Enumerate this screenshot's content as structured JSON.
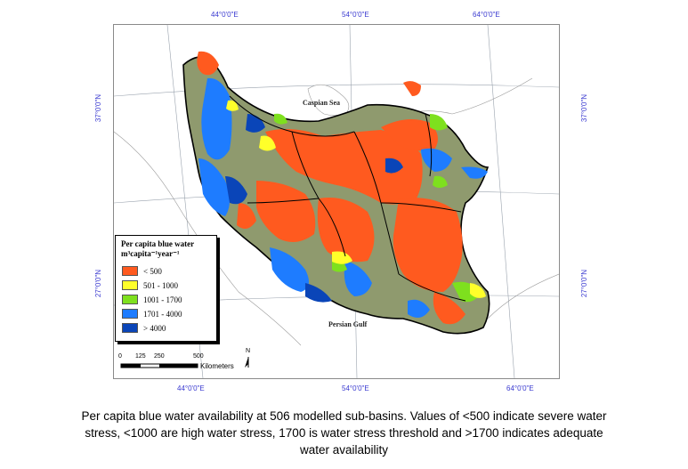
{
  "map": {
    "top_labels": [
      "44°0'0\"E",
      "54°0'0\"E",
      "64°0'0\"E"
    ],
    "bottom_labels": [
      "44°0'0\"E",
      "54°0'0\"E",
      "64°0'0\"E"
    ],
    "left_labels": [
      "37°0'0\"N",
      "27°0'0\"N"
    ],
    "right_labels": [
      "37°0'0\"N",
      "27°0'0\"N"
    ],
    "caspian_label": "Caspian Sea",
    "gulf_label": "Persian Gulf",
    "north_label": "N"
  },
  "legend": {
    "title_line1": "Per capita blue water",
    "title_line2": "m³capita⁻¹year⁻¹",
    "items": [
      {
        "label": "< 500",
        "color": "#ff5a1f"
      },
      {
        "label": "501 - 1000",
        "color": "#ffff2a"
      },
      {
        "label": "1001 - 1700",
        "color": "#7ee01e"
      },
      {
        "label": "1701 - 4000",
        "color": "#1e7cff"
      },
      {
        "label": "> 4000",
        "color": "#0a45b8"
      }
    ]
  },
  "scale_bar": {
    "ticks": [
      "0",
      "125",
      "250",
      "500"
    ],
    "unit": "Kilometers"
  },
  "colors": {
    "low_density": "#8f9a6e",
    "no_data": "#f0f0e6",
    "boundary": "#000000",
    "graticule": "#9aa3ae"
  },
  "caption": {
    "line1": "Per capita blue water availability at 506 modelled sub-basins. Values of <500 indicate severe water",
    "line2": "stress, <1000 are high water stress, 1700 is water stress threshold and >1700 indicates adequate",
    "line3": "water availability"
  }
}
